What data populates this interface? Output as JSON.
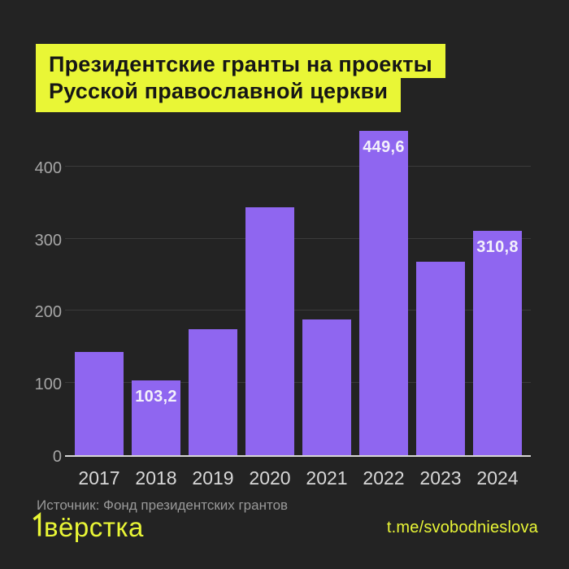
{
  "colors": {
    "background": "#232323",
    "accent_yellow": "#e9f636",
    "bar_purple": "#8f66f0",
    "grid_line": "#3b3b3b",
    "axis_line": "#d6d6d6"
  },
  "title": {
    "line1": "Президентские гранты на проекты",
    "line2": "Русской православной церкви"
  },
  "chart_data": {
    "type": "bar",
    "categories": [
      "2017",
      "2018",
      "2019",
      "2020",
      "2021",
      "2022",
      "2023",
      "2024"
    ],
    "values": [
      143,
      103.2,
      175,
      343,
      188,
      449.6,
      268,
      310.8
    ],
    "data_labels": [
      "",
      "103,2",
      "",
      "",
      "",
      "449,6",
      "",
      "310,8"
    ],
    "yticks": [
      0,
      100,
      200,
      300,
      400
    ],
    "ylim": [
      0,
      455
    ],
    "xlabel": "",
    "ylabel": "",
    "grid": true,
    "legend": false,
    "bar_color": "#8f66f0",
    "title": "Президентские гранты на проекты Русской православной церкви"
  },
  "source": "Источник: Фонд президентских грантов",
  "footer": {
    "logo": "вёрстка",
    "link": "t.me/svobodnieslova"
  }
}
